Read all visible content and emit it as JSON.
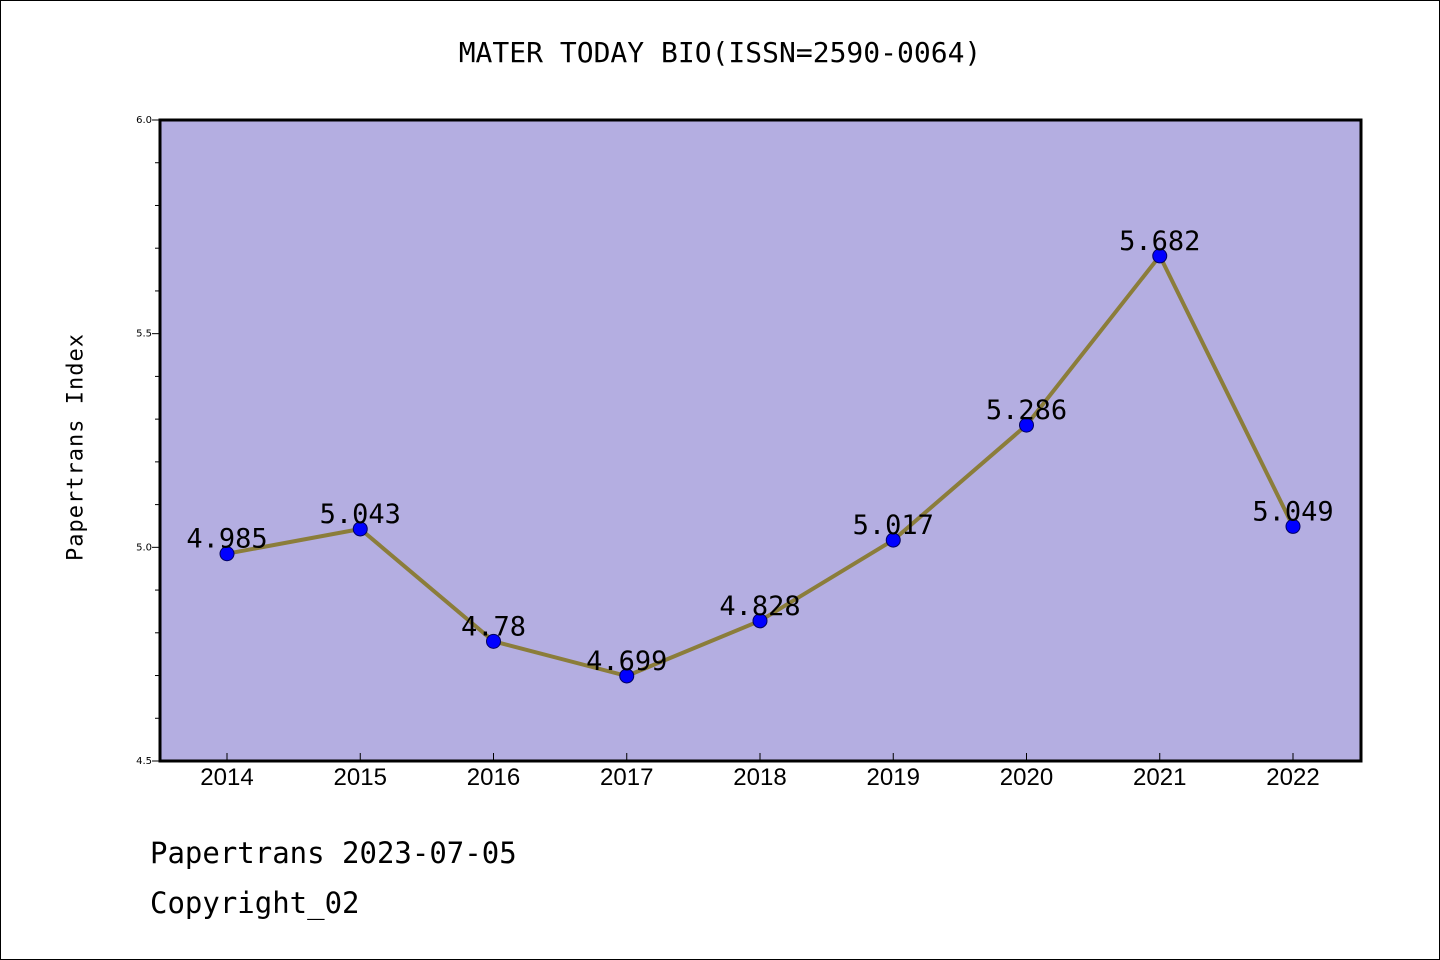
{
  "chart_data": {
    "type": "line",
    "title": "MATER TODAY BIO(ISSN=2590-0064)",
    "xlabel": "",
    "ylabel": "Papertrans Index",
    "categories": [
      "2014",
      "2015",
      "2016",
      "2017",
      "2018",
      "2019",
      "2020",
      "2021",
      "2022"
    ],
    "values": [
      4.985,
      5.043,
      4.78,
      4.699,
      4.828,
      5.017,
      5.286,
      5.682,
      5.049
    ],
    "data_labels": [
      "4.985",
      "5.043",
      "4.78",
      "4.699",
      "4.828",
      "5.017",
      "5.286",
      "5.682",
      "5.049"
    ],
    "ylim": [
      4.5,
      6.0
    ],
    "yticks": [
      "4.5",
      "5.0",
      "5.5",
      "6.0"
    ],
    "grid": false,
    "colors": {
      "background": "#b4aee1",
      "line": "#8b7d3a",
      "marker": "#0000ff"
    }
  },
  "footer": {
    "source": "Papertrans 2023-07-05",
    "copyright": "Copyright_02"
  }
}
